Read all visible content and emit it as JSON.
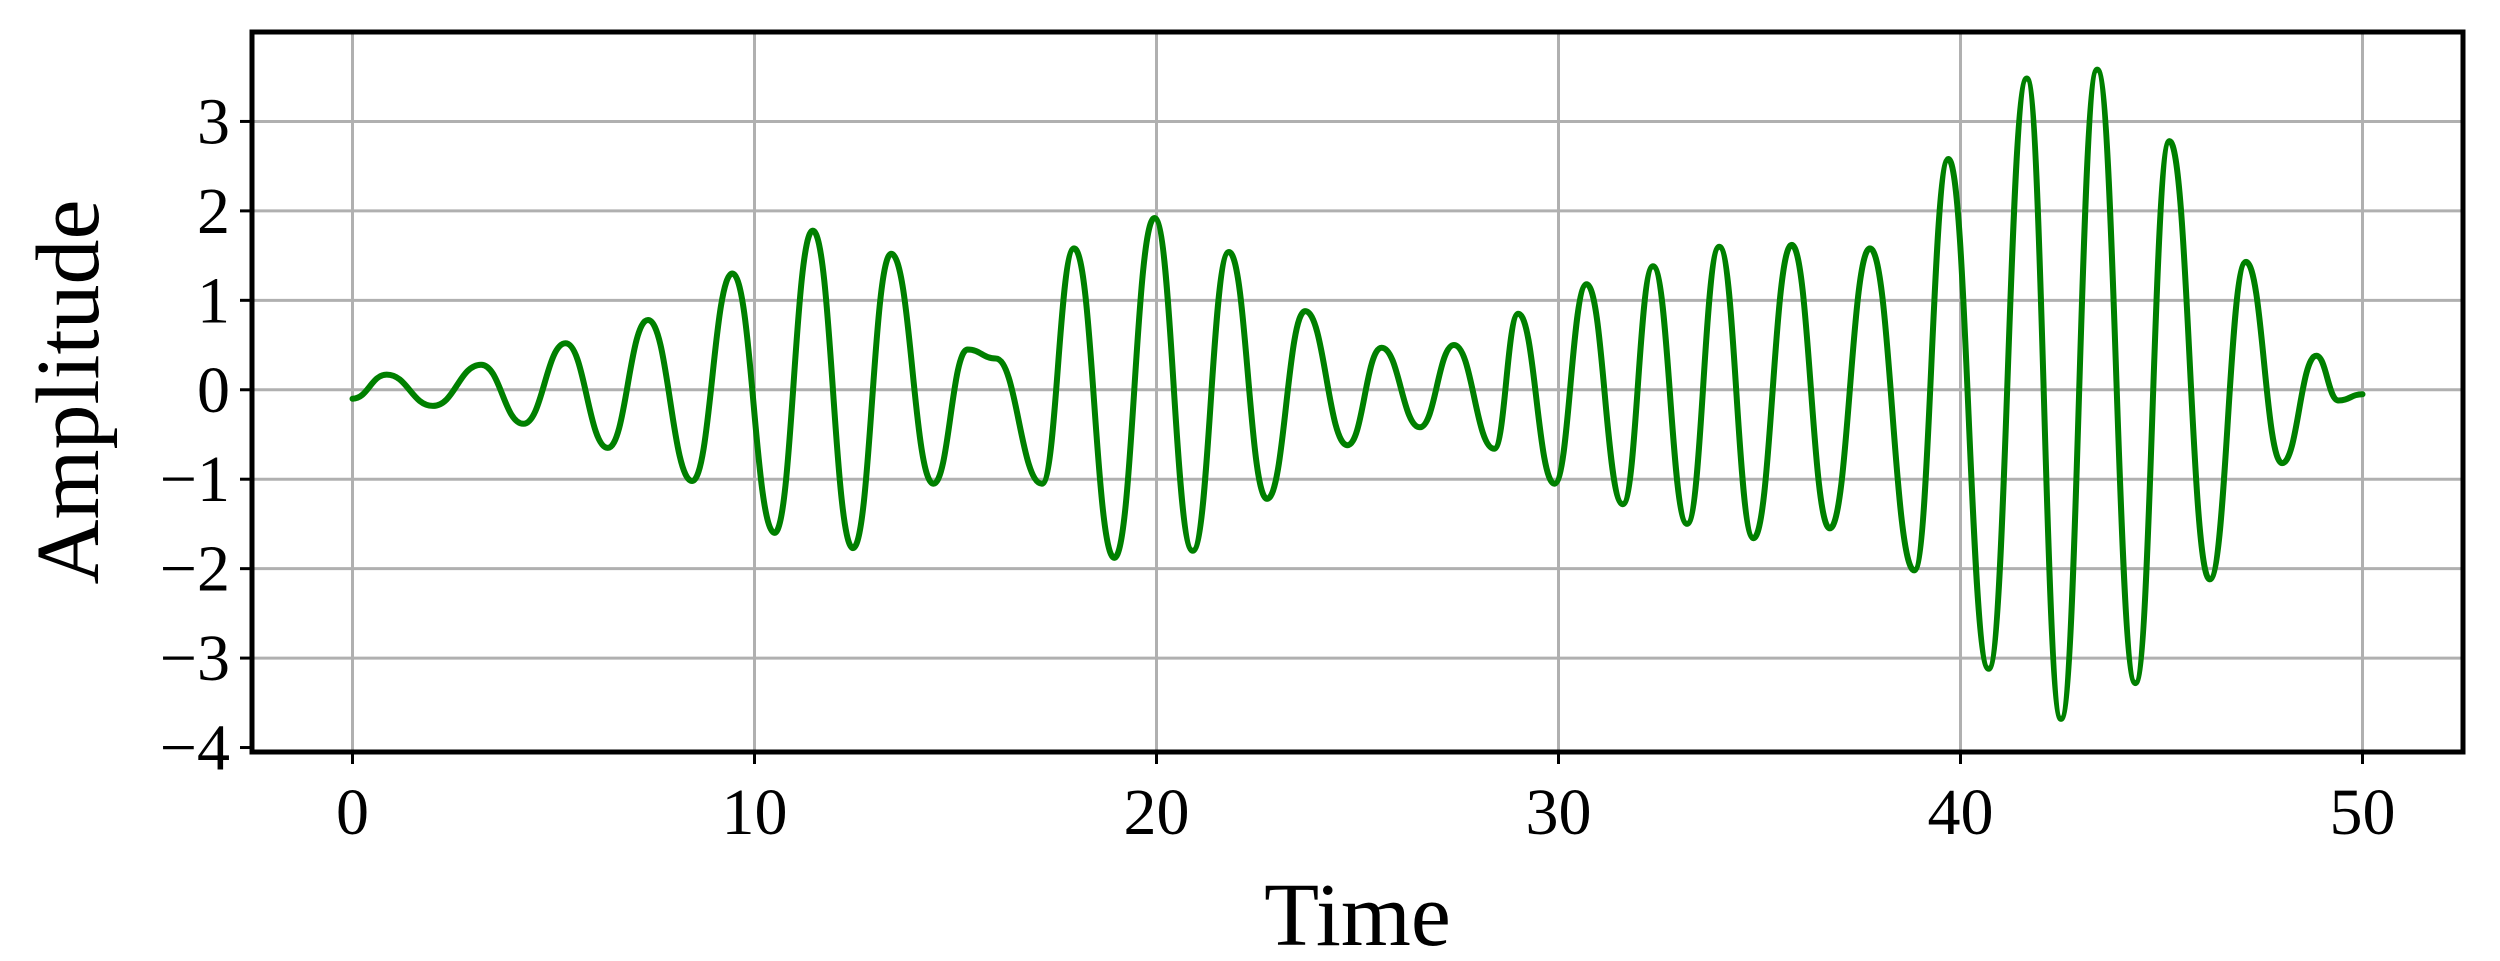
{
  "chart_data": {
    "type": "line",
    "title": "",
    "xlabel": "Time",
    "ylabel": "Amplitude",
    "xlim": [
      -2.5,
      52.5
    ],
    "ylim": [
      -4.05,
      4.0
    ],
    "xticks": [
      0,
      10,
      20,
      30,
      40,
      50
    ],
    "yticks": [
      3,
      2,
      1,
      0,
      -1,
      -2,
      -3,
      -4
    ],
    "xtick_labels": [
      "0",
      "10",
      "20",
      "30",
      "40",
      "50"
    ],
    "ytick_labels": [
      "3",
      "2",
      "1",
      "0",
      "−1",
      "−2",
      "−3",
      "−4"
    ],
    "grid": true,
    "series": [
      {
        "color": "#008000",
        "x": [
          0,
          0.85,
          2.0,
          3.2,
          4.25,
          5.3,
          6.35,
          7.35,
          8.45,
          9.45,
          10.5,
          11.45,
          12.45,
          13.4,
          14.45,
          15.3,
          16.0,
          17.15,
          17.95,
          18.95,
          19.95,
          20.9,
          21.8,
          22.75,
          23.7,
          24.75,
          25.6,
          26.55,
          27.4,
          28.4,
          29.0,
          29.9,
          30.7,
          31.6,
          32.35,
          33.2,
          34.0,
          34.85,
          35.8,
          36.75,
          37.75,
          38.85,
          39.7,
          40.7,
          41.65,
          42.5,
          43.4,
          44.35,
          45.2,
          46.2,
          47.1,
          48.0,
          48.85,
          49.4,
          50.0
        ],
        "y": [
          -0.1,
          0.17,
          -0.18,
          0.28,
          -0.38,
          0.52,
          -0.65,
          0.78,
          -1.02,
          1.3,
          -1.6,
          1.78,
          -1.77,
          1.52,
          -1.05,
          0.45,
          0.35,
          -1.05,
          1.58,
          -1.88,
          1.92,
          -1.8,
          1.54,
          -1.22,
          0.88,
          -0.62,
          0.47,
          -0.42,
          0.5,
          -0.66,
          0.85,
          -1.05,
          1.18,
          -1.28,
          1.38,
          -1.5,
          1.6,
          -1.66,
          1.62,
          -1.55,
          1.58,
          -2.02,
          2.58,
          -3.12,
          3.48,
          -3.68,
          3.58,
          -3.28,
          2.78,
          -2.12,
          1.43,
          -0.82,
          0.38,
          -0.12,
          -0.05
        ]
      }
    ]
  }
}
